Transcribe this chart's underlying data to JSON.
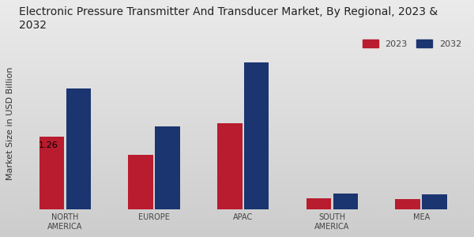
{
  "title": "Electronic Pressure Transmitter And Transducer Market, By Regional, 2023 &\n2032",
  "ylabel": "Market Size in USD Billion",
  "categories": [
    "NORTH\nAMERICA",
    "EUROPE",
    "APAC",
    "SOUTH\nAMERICA",
    "MEA"
  ],
  "values_2023": [
    1.26,
    0.95,
    1.5,
    0.2,
    0.18
  ],
  "values_2032": [
    2.1,
    1.45,
    2.55,
    0.28,
    0.27
  ],
  "color_2023": "#b81c2e",
  "color_2032": "#1a3570",
  "annotation_text": "1.26",
  "annotation_index": 0,
  "background_color_top": "#f0f0f0",
  "background_color_bottom": "#d8d8d8",
  "legend_labels": [
    "2023",
    "2032"
  ],
  "bar_width": 0.28,
  "ylim": [
    0,
    3.0
  ],
  "title_fontsize": 10,
  "axis_label_fontsize": 8,
  "tick_fontsize": 7,
  "legend_fontsize": 8
}
